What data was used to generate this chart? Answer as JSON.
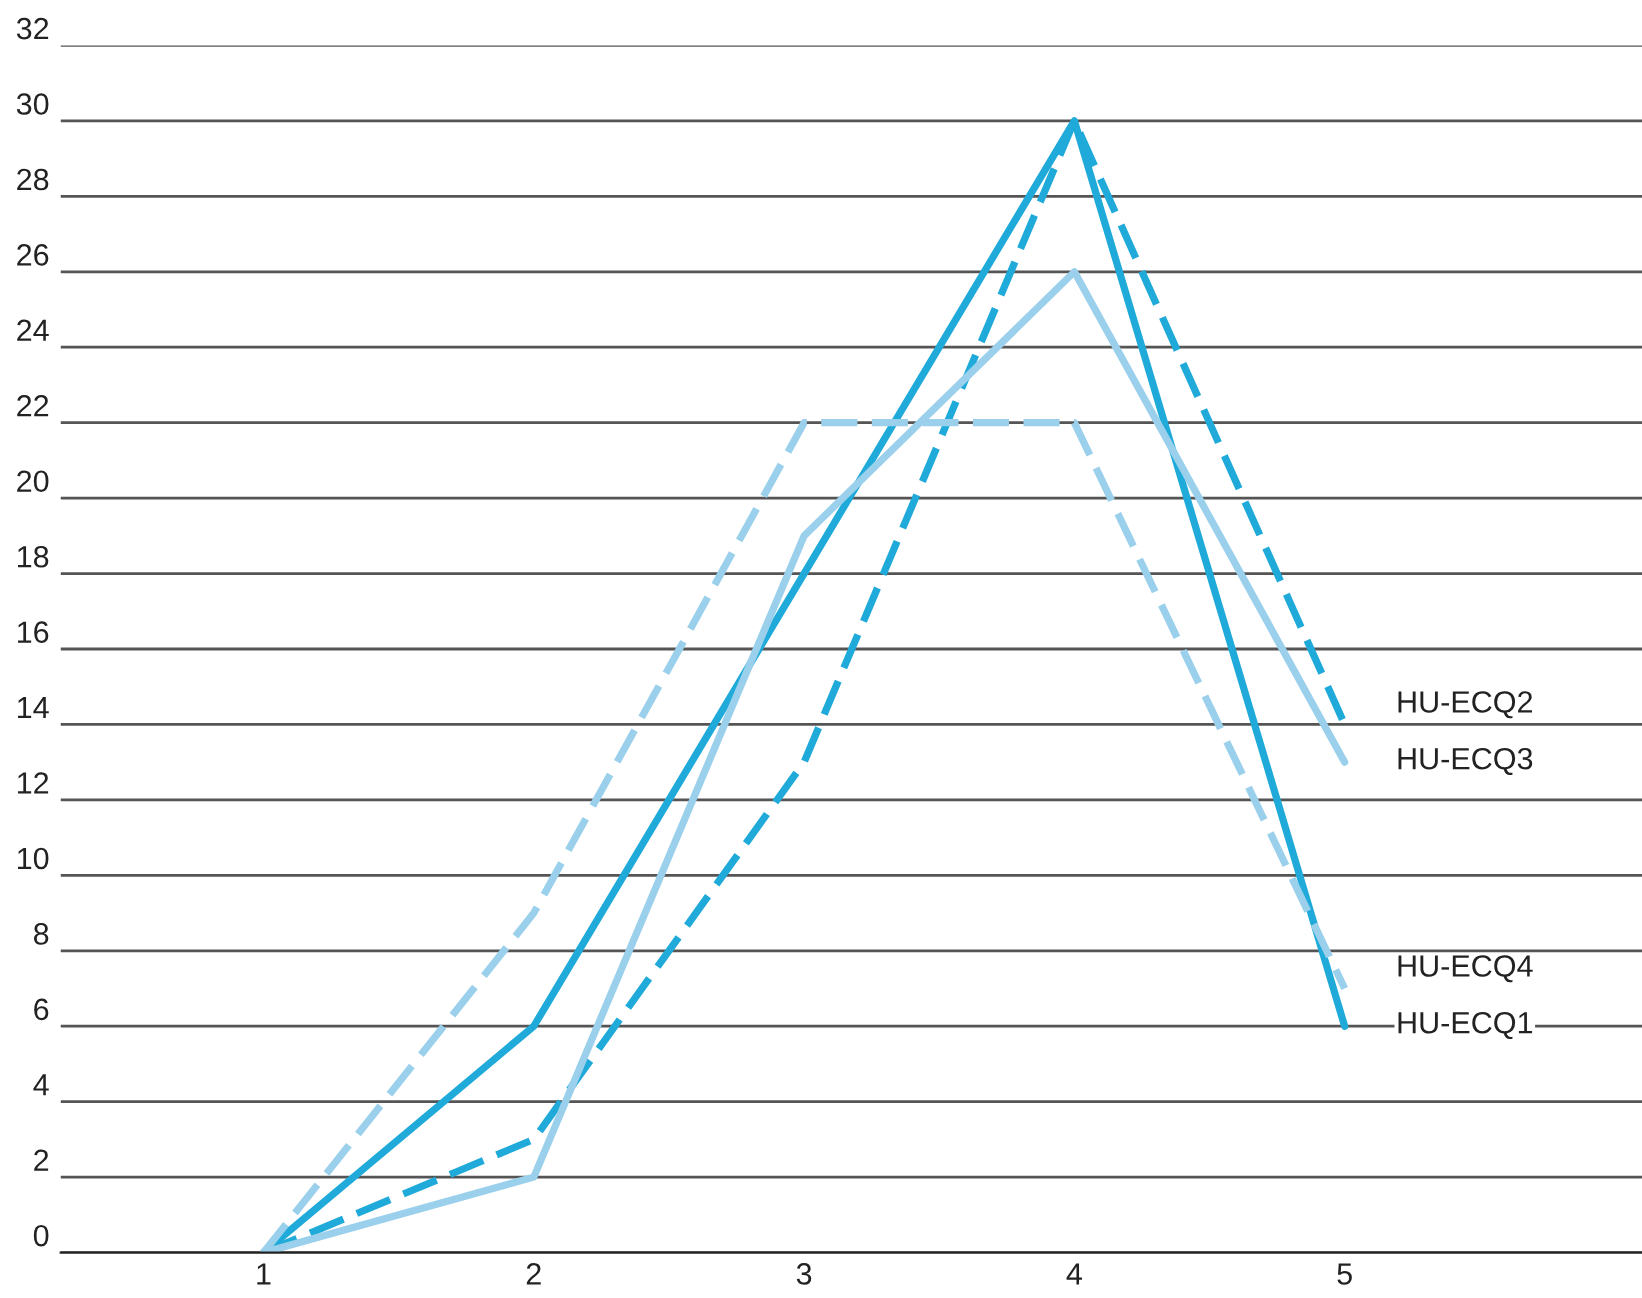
{
  "chart_data": {
    "type": "line",
    "x": [
      1,
      2,
      3,
      4,
      5
    ],
    "series": [
      {
        "name": "HU-ECQ1",
        "color": "#1faad9",
        "line_style": "solid",
        "values": [
          0,
          6,
          18,
          30,
          6
        ]
      },
      {
        "name": "HU-ECQ2",
        "color": "#1faad9",
        "line_style": "dashed",
        "values": [
          0,
          3,
          13,
          30,
          14
        ]
      },
      {
        "name": "HU-ECQ3",
        "color": "#9bd0ec",
        "line_style": "solid",
        "values": [
          0,
          2,
          19,
          26,
          13
        ]
      },
      {
        "name": "HU-ECQ4",
        "color": "#9bd0ec",
        "line_style": "dashed",
        "values": [
          0,
          9,
          22,
          22,
          7
        ]
      }
    ],
    "xlim": [
      0.25,
      6.1
    ],
    "xticks": [
      1,
      2,
      3,
      4,
      5
    ],
    "ylim": [
      0,
      32
    ],
    "yticks": [
      0,
      2,
      4,
      6,
      8,
      10,
      12,
      14,
      16,
      18,
      20,
      22,
      24,
      26,
      28,
      30,
      32
    ],
    "grid": "y",
    "legend": false,
    "marker": "none"
  }
}
